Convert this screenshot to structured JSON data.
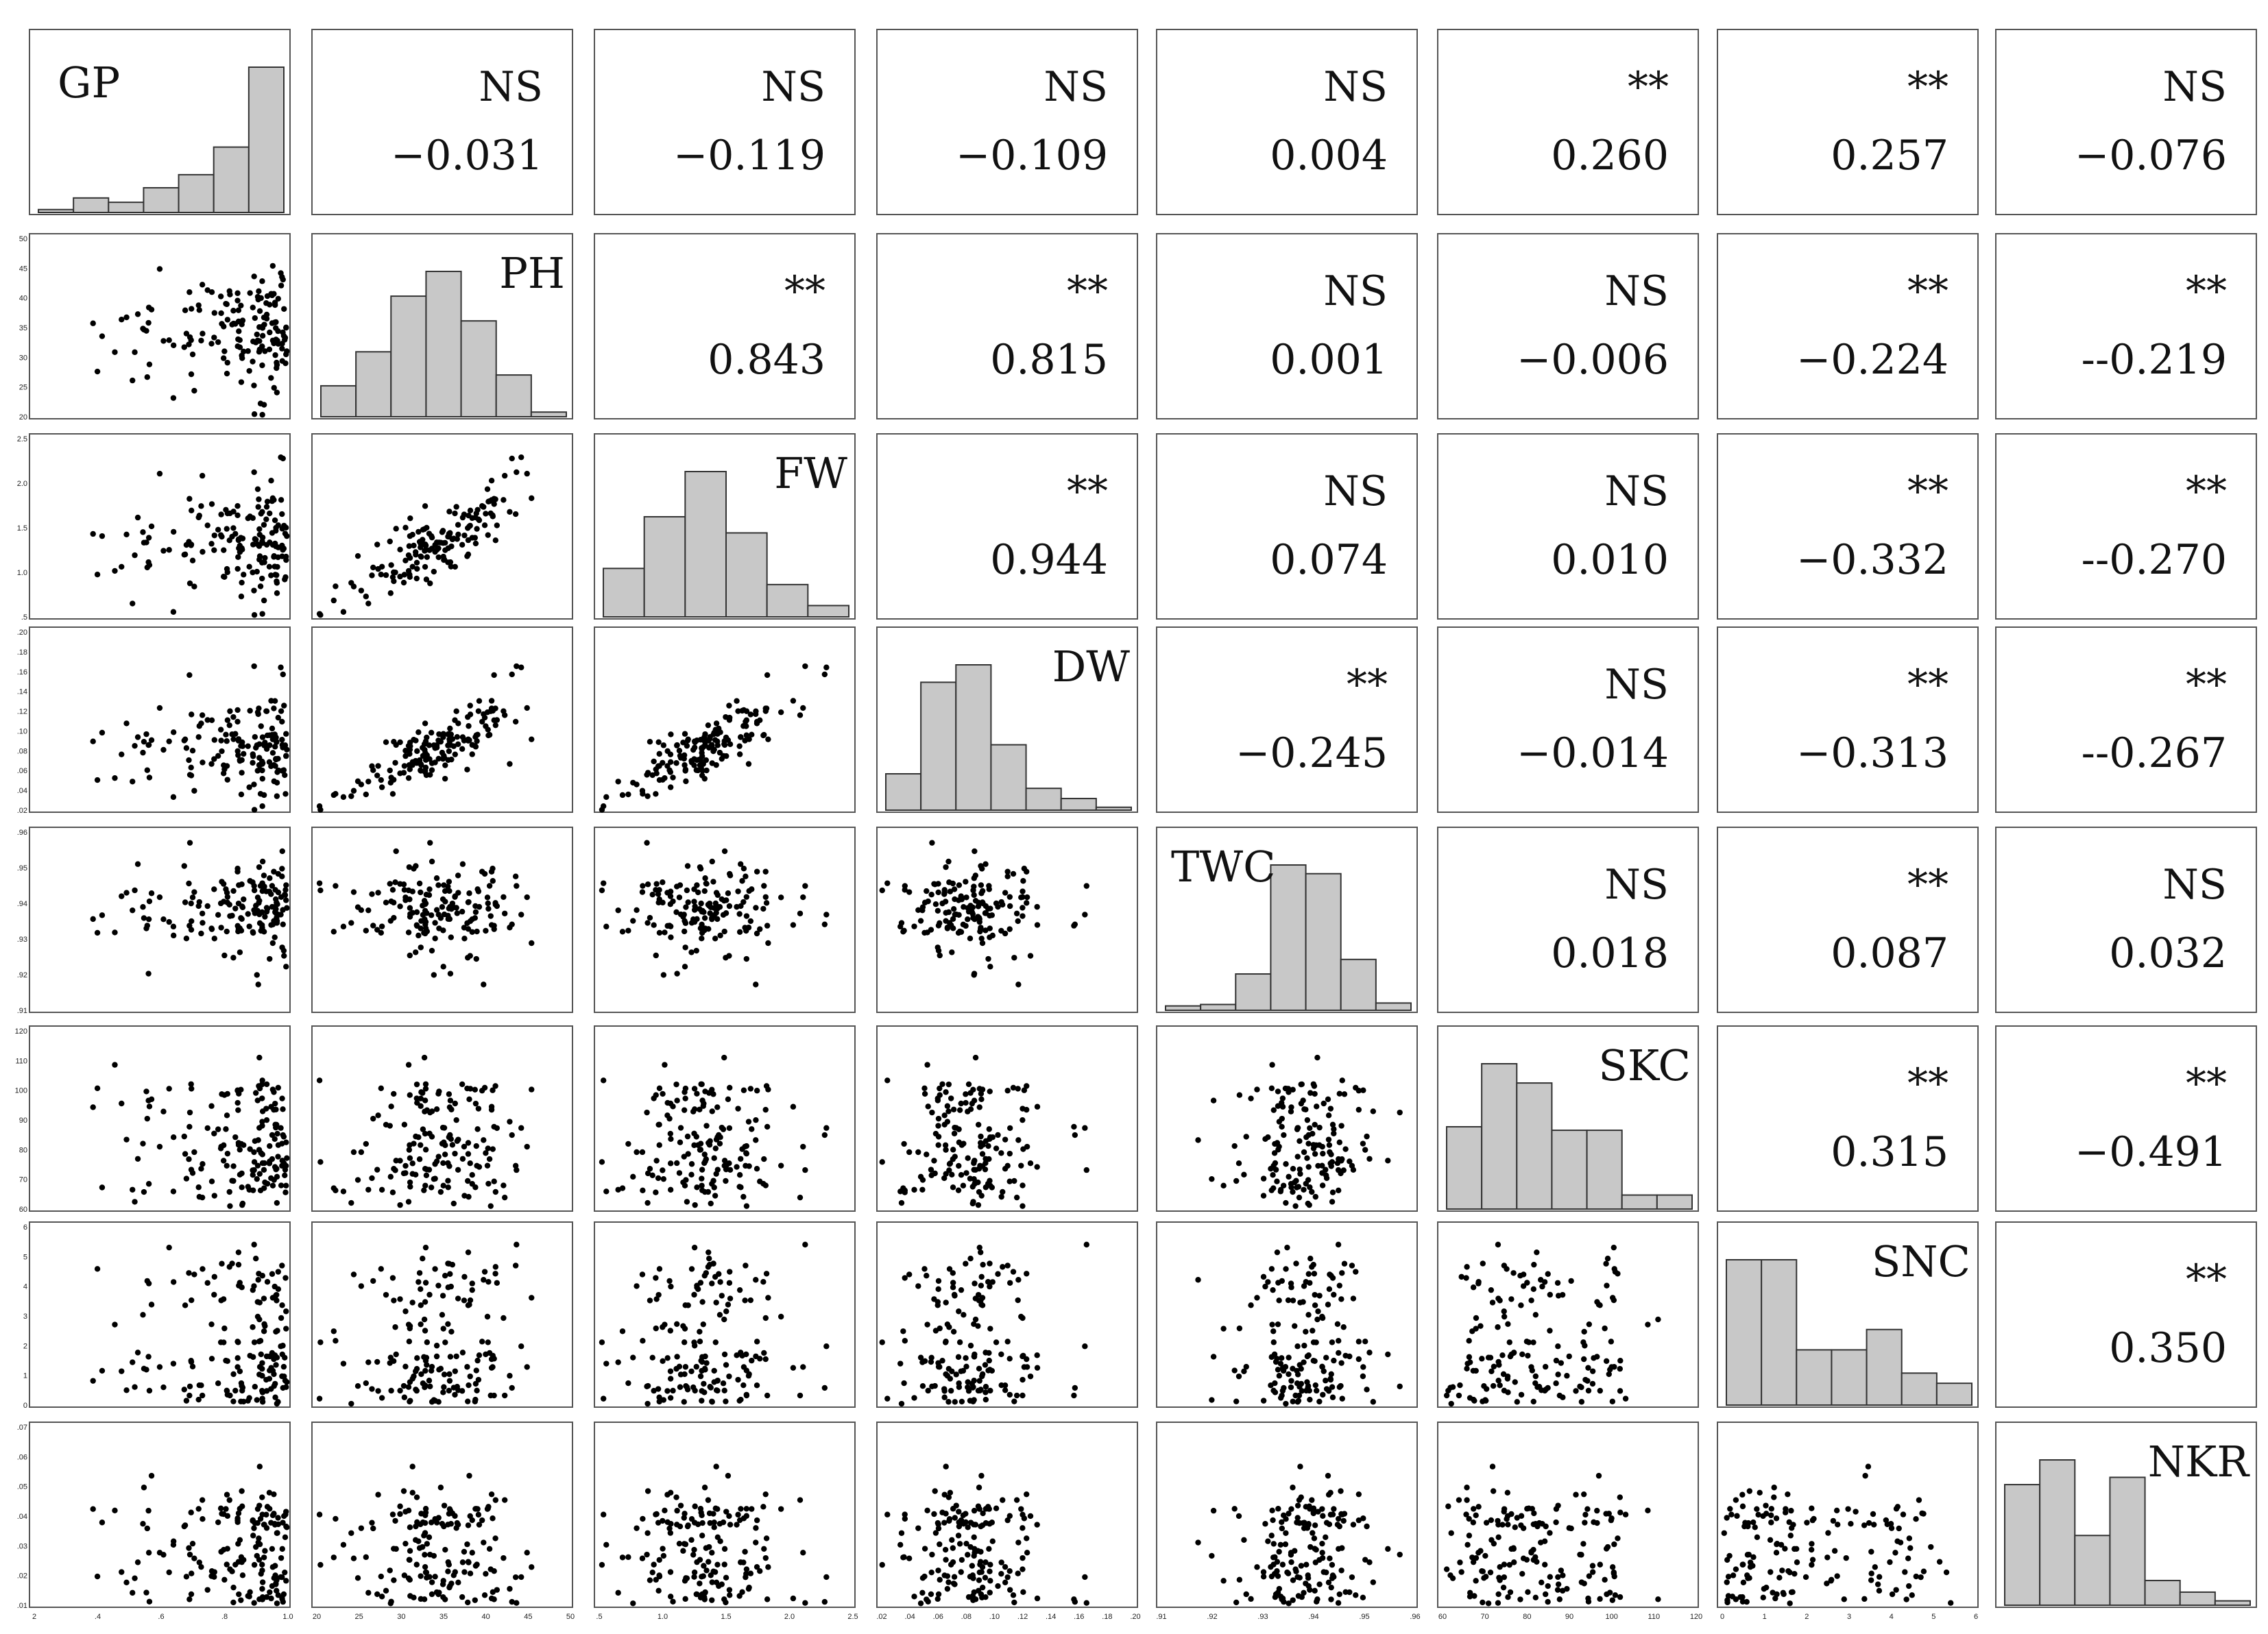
{
  "chart_data": {
    "type": "scatter",
    "subtype": "scatterplot-matrix",
    "variables": [
      "GP",
      "PH",
      "FW",
      "DW",
      "TWC",
      "SKC",
      "SNC",
      "NKR"
    ],
    "correlations": [
      {
        "row": "GP",
        "col": "PH",
        "sig": "NS",
        "r": "−0.031"
      },
      {
        "row": "GP",
        "col": "FW",
        "sig": "NS",
        "r": "−0.119"
      },
      {
        "row": "GP",
        "col": "DW",
        "sig": "NS",
        "r": "−0.109"
      },
      {
        "row": "GP",
        "col": "TWC",
        "sig": "NS",
        "r": "0.004"
      },
      {
        "row": "GP",
        "col": "SKC",
        "sig": "**",
        "r": "0.260"
      },
      {
        "row": "GP",
        "col": "SNC",
        "sig": "**",
        "r": "0.257"
      },
      {
        "row": "GP",
        "col": "NKR",
        "sig": "NS",
        "r": "−0.076"
      },
      {
        "row": "PH",
        "col": "FW",
        "sig": "**",
        "r": "0.843"
      },
      {
        "row": "PH",
        "col": "DW",
        "sig": "**",
        "r": "0.815"
      },
      {
        "row": "PH",
        "col": "TWC",
        "sig": "NS",
        "r": "0.001"
      },
      {
        "row": "PH",
        "col": "SKC",
        "sig": "NS",
        "r": "−0.006"
      },
      {
        "row": "PH",
        "col": "SNC",
        "sig": "**",
        "r": "−0.224"
      },
      {
        "row": "PH",
        "col": "NKR",
        "sig": "**",
        "r": "--0.219"
      },
      {
        "row": "FW",
        "col": "DW",
        "sig": "**",
        "r": "0.944"
      },
      {
        "row": "FW",
        "col": "TWC",
        "sig": "NS",
        "r": "0.074"
      },
      {
        "row": "FW",
        "col": "SKC",
        "sig": "NS",
        "r": "0.010"
      },
      {
        "row": "FW",
        "col": "SNC",
        "sig": "**",
        "r": "−0.332"
      },
      {
        "row": "FW",
        "col": "NKR",
        "sig": "**",
        "r": "--0.270"
      },
      {
        "row": "DW",
        "col": "TWC",
        "sig": "**",
        "r": "−0.245"
      },
      {
        "row": "DW",
        "col": "SKC",
        "sig": "NS",
        "r": "−0.014"
      },
      {
        "row": "DW",
        "col": "SNC",
        "sig": "**",
        "r": "−0.313"
      },
      {
        "row": "DW",
        "col": "NKR",
        "sig": "**",
        "r": "--0.267"
      },
      {
        "row": "TWC",
        "col": "SKC",
        "sig": "NS",
        "r": "0.018"
      },
      {
        "row": "TWC",
        "col": "SNC",
        "sig": "**",
        "r": "0.087"
      },
      {
        "row": "TWC",
        "col": "NKR",
        "sig": "NS",
        "r": "0.032"
      },
      {
        "row": "SKC",
        "col": "SNC",
        "sig": "**",
        "r": "0.315"
      },
      {
        "row": "SKC",
        "col": "NKR",
        "sig": "**",
        "r": "−0.491"
      },
      {
        "row": "SNC",
        "col": "NKR",
        "sig": "**",
        "r": "0.350"
      }
    ],
    "histograms": {
      "GP": [
        2,
        10,
        7,
        17,
        26,
        45,
        100
      ],
      "PH": [
        20,
        42,
        78,
        94,
        62,
        27,
        3
      ],
      "FW": [
        30,
        62,
        90,
        52,
        20,
        7
      ],
      "DW": [
        25,
        88,
        100,
        45,
        15,
        8,
        2
      ],
      "TWC": [
        3,
        4,
        25,
        100,
        94,
        35,
        5
      ],
      "SKC": [
        47,
        83,
        72,
        45,
        45,
        8,
        8
      ],
      "SNC": [
        100,
        100,
        38,
        38,
        52,
        22,
        15
      ],
      "NKR": [
        83,
        100,
        48,
        88,
        17,
        9,
        3
      ]
    },
    "axes": {
      "GP": {
        "range": [
          0.15,
          1.0
        ],
        "ticks": [
          "2",
          ".4",
          ".6",
          ".8",
          "1.0"
        ]
      },
      "PH": {
        "range": [
          20,
          50
        ],
        "ticks": [
          "20",
          "25",
          "30",
          "35",
          "40",
          "45",
          "50"
        ]
      },
      "FW": {
        "range": [
          0.5,
          2.5
        ],
        "ticks": [
          ".5",
          "1.0",
          "1.5",
          "2.0",
          "2.5"
        ]
      },
      "DW": {
        "range": [
          0.02,
          0.2
        ],
        "ticks": [
          ".02",
          ".04",
          ".06",
          ".08",
          ".10",
          ".12",
          ".14",
          ".16",
          ".18",
          ".20"
        ]
      },
      "TWC": {
        "range": [
          0.91,
          0.96
        ],
        "ticks": [
          ".91",
          ".92",
          ".93",
          ".94",
          ".95",
          ".96"
        ]
      },
      "SKC": {
        "range": [
          60,
          120
        ],
        "ticks": [
          "60",
          "70",
          "80",
          "90",
          "100",
          "110",
          "120"
        ]
      },
      "SNC": {
        "range": [
          0,
          6
        ],
        "ticks": [
          "0",
          "1",
          "2",
          "3",
          "4",
          "5",
          "6"
        ]
      },
      "NKR": {
        "range": [
          0.01,
          0.07
        ],
        "ticks": [
          ".01",
          ".02",
          ".03",
          ".04",
          ".05",
          ".06",
          ".07"
        ]
      }
    }
  }
}
